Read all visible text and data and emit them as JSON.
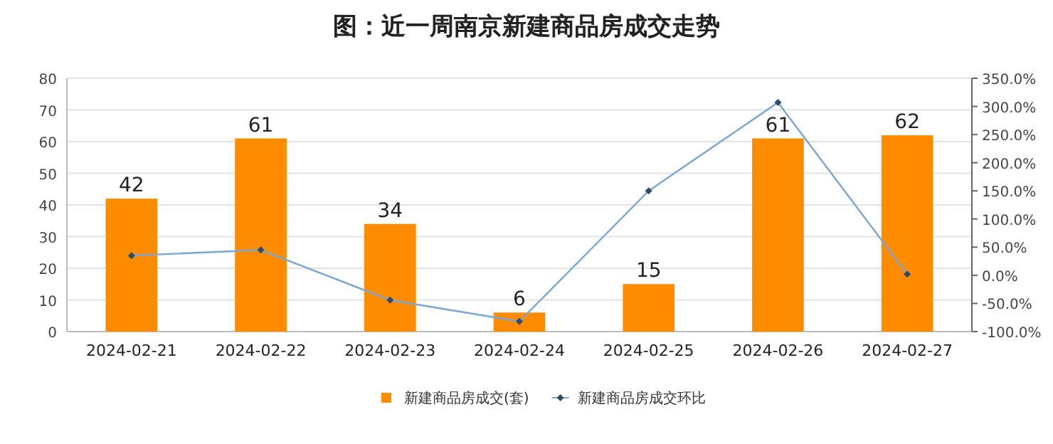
{
  "chart_data": {
    "type": "bar",
    "title": "图：近一周南京新建商品房成交走势",
    "categories": [
      "2024-02-21",
      "2024-02-22",
      "2024-02-23",
      "2024-02-24",
      "2024-02-25",
      "2024-02-26",
      "2024-02-27"
    ],
    "series": [
      {
        "name": "新建商品房成交(套)",
        "color": "#ff8c00",
        "values": [
          42,
          61,
          34,
          6,
          15,
          61,
          62
        ],
        "data_labels": true
      },
      {
        "name": "新建商品房成交环比",
        "type": "line",
        "axis": "y2",
        "color": "#7aa6d6",
        "marker": "diamond",
        "values": [
          35,
          45,
          -44,
          -82,
          150,
          307,
          2
        ]
      }
    ],
    "ylim": [
      0,
      80
    ],
    "yticks": [
      0,
      10,
      20,
      30,
      40,
      50,
      60,
      70,
      80
    ],
    "y2lim": [
      -100,
      350
    ],
    "y2ticks": [
      {
        "value": -100,
        "label": "-100.0%"
      },
      {
        "value": -50,
        "label": "-50.0%"
      },
      {
        "value": 0,
        "label": "0.0%"
      },
      {
        "value": 50,
        "label": "50.0%"
      },
      {
        "value": 100,
        "label": "100.0%"
      },
      {
        "value": 150,
        "label": "150.0%"
      },
      {
        "value": 200,
        "label": "200.0%"
      },
      {
        "value": 250,
        "label": "250.0%"
      },
      {
        "value": 300,
        "label": "300.0%"
      },
      {
        "value": 350,
        "label": "350.0%"
      }
    ],
    "grid": "y",
    "legend": "bottom"
  }
}
